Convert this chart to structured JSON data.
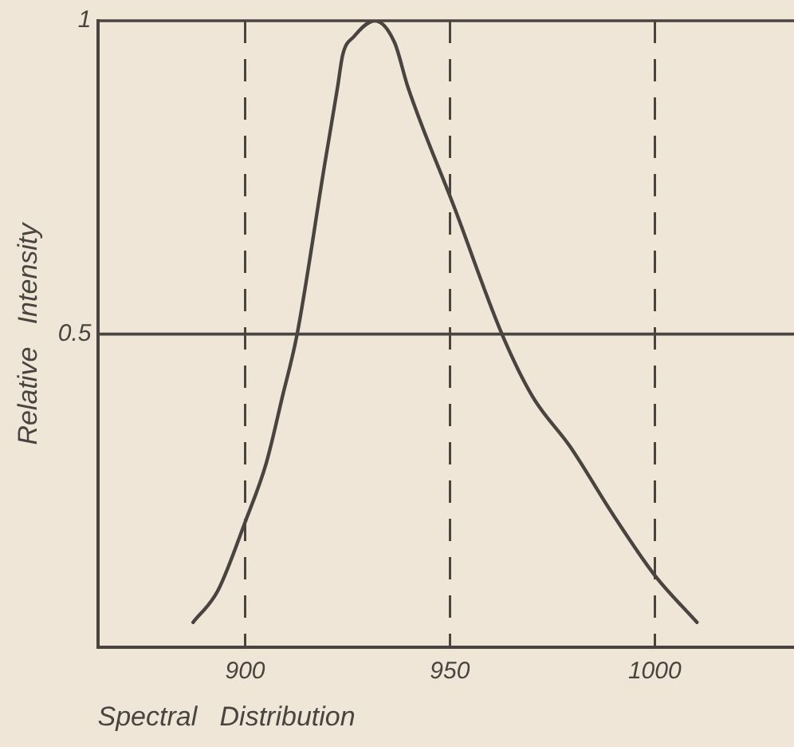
{
  "chart_data": {
    "type": "line",
    "xlabel": "Spectral   Distribution",
    "ylabel": "Relative   Intensity",
    "series": [
      {
        "color": "#4a4440",
        "x": [
          887.3,
          893.3,
          900,
          905.2,
          909.1,
          912.7,
          919.4,
          922.6,
          923.8,
          926.6,
          931.7,
          936.5,
          939.7,
          951.2,
          962.7,
          970.2,
          979.4,
          990,
          1000,
          1010.3
        ],
        "values": [
          0.04,
          0.09,
          0.2,
          0.295,
          0.4,
          0.5,
          0.77,
          0.895,
          0.945,
          0.975,
          1.0,
          0.965,
          0.895,
          0.7,
          0.5,
          0.4,
          0.32,
          0.21,
          0.115,
          0.04
        ]
      }
    ],
    "xlim": [
      864,
      1034
    ],
    "xticks": [
      900,
      950,
      1000
    ],
    "ylim": [
      0,
      1
    ],
    "yticks": [
      0.5,
      1
    ],
    "ref_lines": [
      {
        "axis": "y",
        "value": 0.5
      },
      {
        "axis": "y",
        "value": 1
      }
    ],
    "grid": "x",
    "legend": false,
    "marker": "none",
    "line_style": "solid"
  }
}
